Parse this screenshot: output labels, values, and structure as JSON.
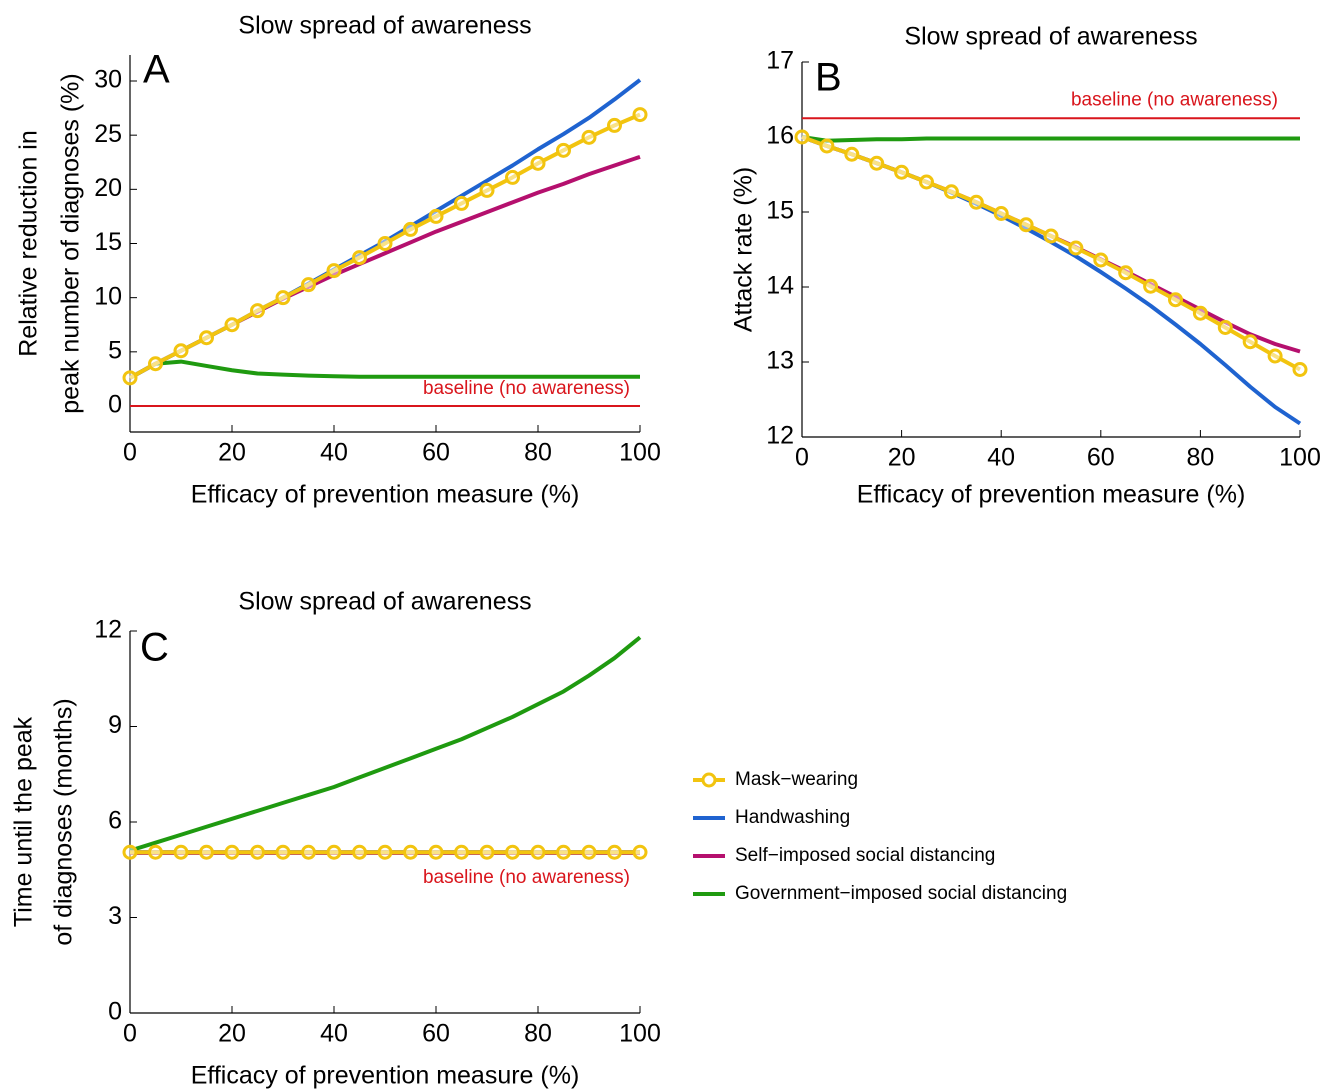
{
  "chart_data": [
    {
      "type": "line",
      "title": "Slow spread of awareness",
      "panel_label": "A",
      "xlabel": "Efficacy of prevention measure (%)",
      "ylabel": [
        "Relative reduction in",
        "peak number of diagnoses (%)"
      ],
      "x": [
        0,
        5,
        10,
        15,
        20,
        25,
        30,
        35,
        40,
        45,
        50,
        55,
        60,
        65,
        70,
        75,
        80,
        85,
        90,
        95,
        100
      ],
      "xlim": [
        0,
        100
      ],
      "xticks": [
        0,
        20,
        40,
        60,
        80,
        100
      ],
      "ylim": [
        -2.4,
        32.4
      ],
      "yticks": [
        0,
        5,
        10,
        15,
        20,
        25,
        30
      ],
      "series": [
        {
          "color": "#f2c40f",
          "marker": "circle",
          "values": [
            2.6,
            3.9,
            5.1,
            6.3,
            7.5,
            8.8,
            10.0,
            11.2,
            12.5,
            13.7,
            15.0,
            16.3,
            17.5,
            18.7,
            19.9,
            21.1,
            22.4,
            23.6,
            24.8,
            25.9,
            26.9
          ]
        },
        {
          "color": "#1f63d0",
          "values": [
            2.6,
            3.9,
            5.1,
            6.3,
            7.5,
            8.8,
            10.0,
            11.3,
            12.6,
            13.9,
            15.2,
            16.6,
            18.0,
            19.4,
            20.8,
            22.2,
            23.7,
            25.1,
            26.6,
            28.3,
            30.1
          ]
        },
        {
          "color": "#b5106e",
          "values": [
            2.6,
            3.9,
            5.1,
            6.3,
            7.5,
            8.7,
            9.9,
            11.0,
            12.1,
            13.1,
            14.1,
            15.1,
            16.1,
            17.0,
            17.9,
            18.8,
            19.7,
            20.5,
            21.4,
            22.2,
            23.0
          ]
        },
        {
          "color": "#1f9a10",
          "values": [
            2.6,
            3.9,
            4.1,
            3.7,
            3.3,
            3.0,
            2.9,
            2.8,
            2.75,
            2.7,
            2.7,
            2.7,
            2.7,
            2.7,
            2.7,
            2.7,
            2.7,
            2.7,
            2.7,
            2.7,
            2.7
          ]
        }
      ],
      "baseline": {
        "value": 0,
        "label": "baseline (no awareness)",
        "color": "#d9151c"
      }
    },
    {
      "type": "line",
      "title": "Slow spread of awareness",
      "panel_label": "B",
      "xlabel": "Efficacy of prevention measure (%)",
      "ylabel": [
        "Attack rate (%)"
      ],
      "x": [
        0,
        5,
        10,
        15,
        20,
        25,
        30,
        35,
        40,
        45,
        50,
        55,
        60,
        65,
        70,
        75,
        80,
        85,
        90,
        95,
        100
      ],
      "xlim": [
        0,
        100
      ],
      "xticks": [
        0,
        20,
        40,
        60,
        80,
        100
      ],
      "ylim": [
        12,
        17
      ],
      "yticks": [
        12,
        13,
        14,
        15,
        16,
        17
      ],
      "series": [
        {
          "color": "#f2c40f",
          "marker": "circle",
          "values": [
            16.0,
            15.88,
            15.77,
            15.65,
            15.53,
            15.4,
            15.27,
            15.13,
            14.98,
            14.83,
            14.68,
            14.52,
            14.36,
            14.19,
            14.01,
            13.83,
            13.65,
            13.46,
            13.27,
            13.08,
            12.9
          ]
        },
        {
          "color": "#1f63d0",
          "values": [
            16.0,
            15.88,
            15.77,
            15.65,
            15.53,
            15.4,
            15.26,
            15.11,
            14.95,
            14.78,
            14.6,
            14.41,
            14.2,
            13.98,
            13.75,
            13.5,
            13.24,
            12.96,
            12.67,
            12.4,
            12.18
          ]
        },
        {
          "color": "#b5106e",
          "values": [
            16.0,
            15.88,
            15.77,
            15.65,
            15.53,
            15.4,
            15.27,
            15.13,
            14.98,
            14.83,
            14.68,
            14.53,
            14.37,
            14.21,
            14.04,
            13.87,
            13.7,
            13.53,
            13.37,
            13.24,
            13.14
          ]
        },
        {
          "color": "#1f9a10",
          "values": [
            16.0,
            15.95,
            15.96,
            15.97,
            15.97,
            15.98,
            15.98,
            15.98,
            15.98,
            15.98,
            15.98,
            15.98,
            15.98,
            15.98,
            15.98,
            15.98,
            15.98,
            15.98,
            15.98,
            15.98,
            15.98
          ]
        }
      ],
      "baseline": {
        "value": 16.25,
        "label": "baseline (no awareness)",
        "color": "#d9151c"
      }
    },
    {
      "type": "line",
      "title": "Slow spread of awareness",
      "panel_label": "C",
      "xlabel": "Efficacy of prevention measure (%)",
      "ylabel": [
        "Time until the peak",
        "of diagnoses (months)"
      ],
      "x": [
        0,
        5,
        10,
        15,
        20,
        25,
        30,
        35,
        40,
        45,
        50,
        55,
        60,
        65,
        70,
        75,
        80,
        85,
        90,
        95,
        100
      ],
      "xlim": [
        0,
        100
      ],
      "xticks": [
        0,
        20,
        40,
        60,
        80,
        100
      ],
      "ylim": [
        0,
        12
      ],
      "yticks": [
        0,
        3,
        6,
        9,
        12
      ],
      "series": [
        {
          "name": "Mask−wearing",
          "color": "#f2c40f",
          "marker": "circle",
          "values": [
            5.05,
            5.05,
            5.05,
            5.05,
            5.05,
            5.05,
            5.05,
            5.05,
            5.05,
            5.05,
            5.05,
            5.05,
            5.05,
            5.05,
            5.05,
            5.05,
            5.05,
            5.05,
            5.05,
            5.05,
            5.05
          ]
        },
        {
          "name": "Handwashing",
          "color": "#1f63d0",
          "values": [
            5.05,
            5.05,
            5.05,
            5.05,
            5.05,
            5.05,
            5.05,
            5.05,
            5.05,
            5.05,
            5.05,
            5.05,
            5.05,
            5.05,
            5.05,
            5.05,
            5.05,
            5.05,
            5.05,
            5.05,
            5.05
          ]
        },
        {
          "name": "Self−imposed social distancing",
          "color": "#b5106e",
          "values": [
            5.05,
            5.05,
            5.05,
            5.05,
            5.05,
            5.05,
            5.05,
            5.05,
            5.05,
            5.05,
            5.05,
            5.05,
            5.05,
            5.05,
            5.05,
            5.05,
            5.05,
            5.05,
            5.05,
            5.05,
            5.05
          ]
        },
        {
          "name": "Government−imposed social distancing",
          "color": "#1f9a10",
          "values": [
            5.1,
            5.35,
            5.6,
            5.85,
            6.1,
            6.35,
            6.6,
            6.85,
            7.1,
            7.4,
            7.7,
            8.0,
            8.3,
            8.6,
            8.95,
            9.3,
            9.7,
            10.1,
            10.6,
            11.15,
            11.8
          ]
        }
      ],
      "baseline": {
        "value": 5.0,
        "label": "baseline (no awareness)",
        "color": "#d9151c"
      }
    }
  ]
}
